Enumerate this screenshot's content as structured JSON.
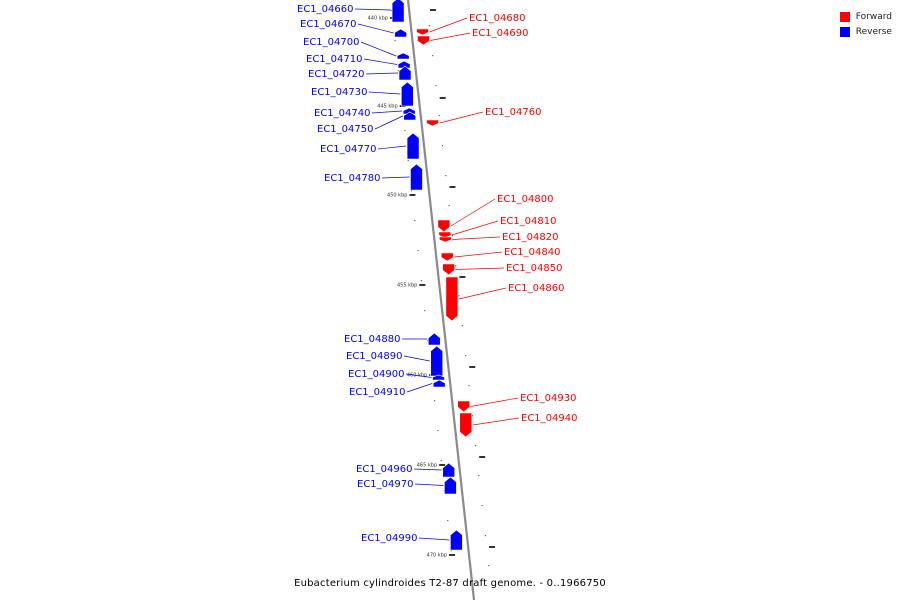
{
  "caption": "Eubacterium cylindroides T2-87 draft genome. - 0..1966750",
  "legend": [
    {
      "label": "Forward",
      "color": "#ff0000"
    },
    {
      "label": "Reverse",
      "color": "#0000ff"
    }
  ],
  "colors": {
    "forward": "#ff0000",
    "reverse": "#0000ff",
    "backbone": "#888888"
  },
  "ticks": [
    "440 kbp",
    "445 kbp",
    "450 kbp",
    "455 kbp",
    "460 kbp",
    "465 kbp",
    "470 kbp"
  ],
  "genes": [
    {
      "name": "EC1_04660",
      "strand": "reverse"
    },
    {
      "name": "EC1_04670",
      "strand": "reverse"
    },
    {
      "name": "EC1_04680",
      "strand": "forward"
    },
    {
      "name": "EC1_04690",
      "strand": "forward"
    },
    {
      "name": "EC1_04700",
      "strand": "reverse"
    },
    {
      "name": "EC1_04710",
      "strand": "reverse"
    },
    {
      "name": "EC1_04720",
      "strand": "reverse"
    },
    {
      "name": "EC1_04730",
      "strand": "reverse"
    },
    {
      "name": "EC1_04740",
      "strand": "reverse"
    },
    {
      "name": "EC1_04750",
      "strand": "reverse"
    },
    {
      "name": "EC1_04760",
      "strand": "forward"
    },
    {
      "name": "EC1_04770",
      "strand": "reverse"
    },
    {
      "name": "EC1_04780",
      "strand": "reverse"
    },
    {
      "name": "EC1_04800",
      "strand": "forward"
    },
    {
      "name": "EC1_04810",
      "strand": "forward"
    },
    {
      "name": "EC1_04820",
      "strand": "forward"
    },
    {
      "name": "EC1_04840",
      "strand": "forward"
    },
    {
      "name": "EC1_04850",
      "strand": "forward"
    },
    {
      "name": "EC1_04860",
      "strand": "forward"
    },
    {
      "name": "EC1_04880",
      "strand": "reverse"
    },
    {
      "name": "EC1_04890",
      "strand": "reverse"
    },
    {
      "name": "EC1_04900",
      "strand": "reverse"
    },
    {
      "name": "EC1_04910",
      "strand": "reverse"
    },
    {
      "name": "EC1_04930",
      "strand": "forward"
    },
    {
      "name": "EC1_04940",
      "strand": "forward"
    },
    {
      "name": "EC1_04960",
      "strand": "reverse"
    },
    {
      "name": "EC1_04970",
      "strand": "reverse"
    },
    {
      "name": "EC1_04990",
      "strand": "reverse"
    }
  ]
}
